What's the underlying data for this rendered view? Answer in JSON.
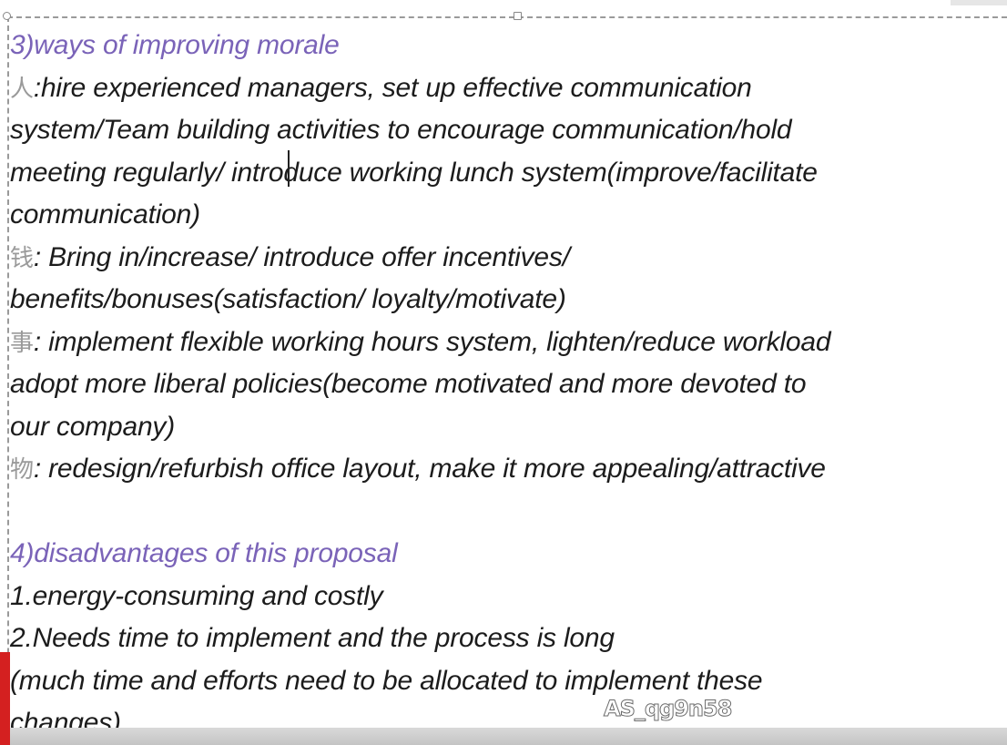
{
  "document": {
    "section3_heading": "3)ways of improving morale",
    "people": {
      "marker": "人",
      "line1": ":hire experienced managers, set up effective communication",
      "line2": "system/Team building activities to encourage communication/hold",
      "line3": "meeting regularly/ introduce working lunch system(improve/facilitate",
      "line4": "communication)"
    },
    "money": {
      "marker": "钱",
      "line1": ": Bring in/increase/ introduce offer incentives/",
      "line2": "benefits/bonuses(satisfaction/ loyalty/motivate)"
    },
    "affairs": {
      "marker": "事",
      "line1": ": implement flexible working hours system, lighten/reduce workload",
      "line2": "adopt more liberal policies(become motivated and more devoted to",
      "line3": "our company)"
    },
    "things": {
      "marker": "物",
      "line1": ": redesign/refurbish office layout, make it more appealing/attractive"
    },
    "section4_heading": "4)disadvantages of this proposal",
    "disadvantage1": "1.energy-consuming and costly",
    "disadvantage2": "2.Needs time to implement and the process is long",
    "note_line1": "(much time and efforts need to be allocated to implement these",
    "note_line2": "changes)"
  },
  "watermark": "AS_qg9n58",
  "colors": {
    "heading": "#7a63b8",
    "body_text": "#1c1c1c",
    "cn_marker": "#9a9a9a",
    "red_tab": "#d42020"
  }
}
